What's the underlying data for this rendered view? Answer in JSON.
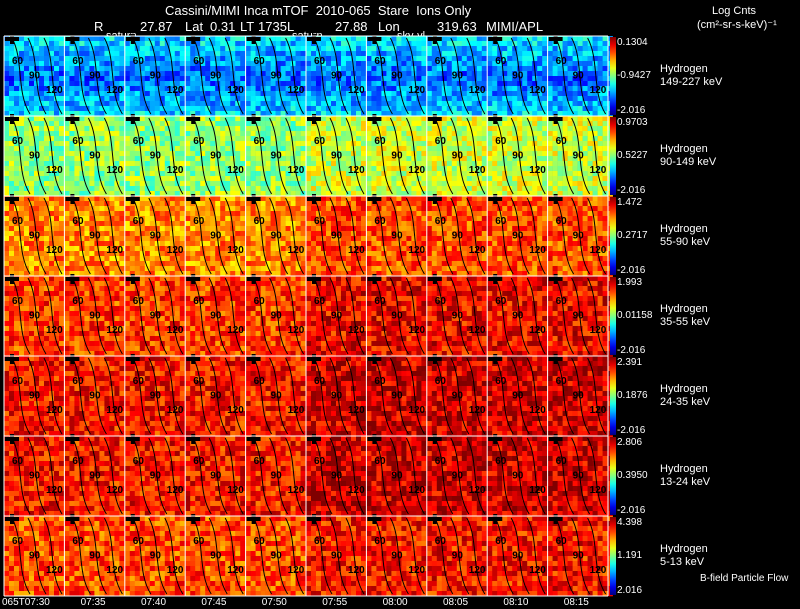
{
  "header": {
    "title": "Cassini/MIMI Inca mTOF  2010-065  Stare  Ions Only",
    "r_label": "R",
    "r_value": "27.87",
    "lat_label": "Lat",
    "lat_value": "0.31",
    "lt_label": "LT",
    "lt_value": "1735",
    "l_label": "L",
    "l_value": "27.88",
    "lon_label": "Lon",
    "lon_value": "319.63",
    "org": "MIMI/APL",
    "marker_saturn_1": "saturn",
    "marker_saturn_2": "saturn",
    "marker_sky": "sky-vl",
    "units_line1": "Log Cnts",
    "units_line2": "(cm²-sr-s-keV)⁻¹",
    "footer_note": "B-field Particle Flow"
  },
  "chart_data": {
    "type": "heatmap",
    "x_ticks": [
      "065T07:30",
      "07:35",
      "07:40",
      "07:45",
      "07:50",
      "07:55",
      "08:00",
      "08:05",
      "08:10",
      "08:15"
    ],
    "contour_labels": [
      "30",
      "60",
      "90",
      "120"
    ],
    "panels": [
      {
        "species": "Hydrogen",
        "energy": "149-227 keV",
        "cb_max": "0.1304",
        "cb_mid": "-0.9427",
        "cb_min": "-2.016",
        "level": 0.35
      },
      {
        "species": "Hydrogen",
        "energy": "90-149 keV",
        "cb_max": "0.9703",
        "cb_mid": "0.5227",
        "cb_min": "-2.016",
        "level": 0.52
      },
      {
        "species": "Hydrogen",
        "energy": "55-90 keV",
        "cb_max": "1.472",
        "cb_mid": "0.2717",
        "cb_min": "-2.016",
        "level": 0.74
      },
      {
        "species": "Hydrogen",
        "energy": "35-55 keV",
        "cb_max": "1.993",
        "cb_mid": "0.01158",
        "cb_min": "-2.016",
        "level": 0.82
      },
      {
        "species": "Hydrogen",
        "energy": "24-35 keV",
        "cb_max": "2.391",
        "cb_mid": "0.1876",
        "cb_min": "-2.016",
        "level": 0.86
      },
      {
        "species": "Hydrogen",
        "energy": "13-24 keV",
        "cb_max": "2.806",
        "cb_mid": "0.3950",
        "cb_min": "-2.016",
        "level": 0.86
      },
      {
        "species": "Hydrogen",
        "energy": "5-13 keV",
        "cb_max": "4.398",
        "cb_mid": "1.191",
        "cb_min": "2.016",
        "level": 0.8
      }
    ]
  }
}
